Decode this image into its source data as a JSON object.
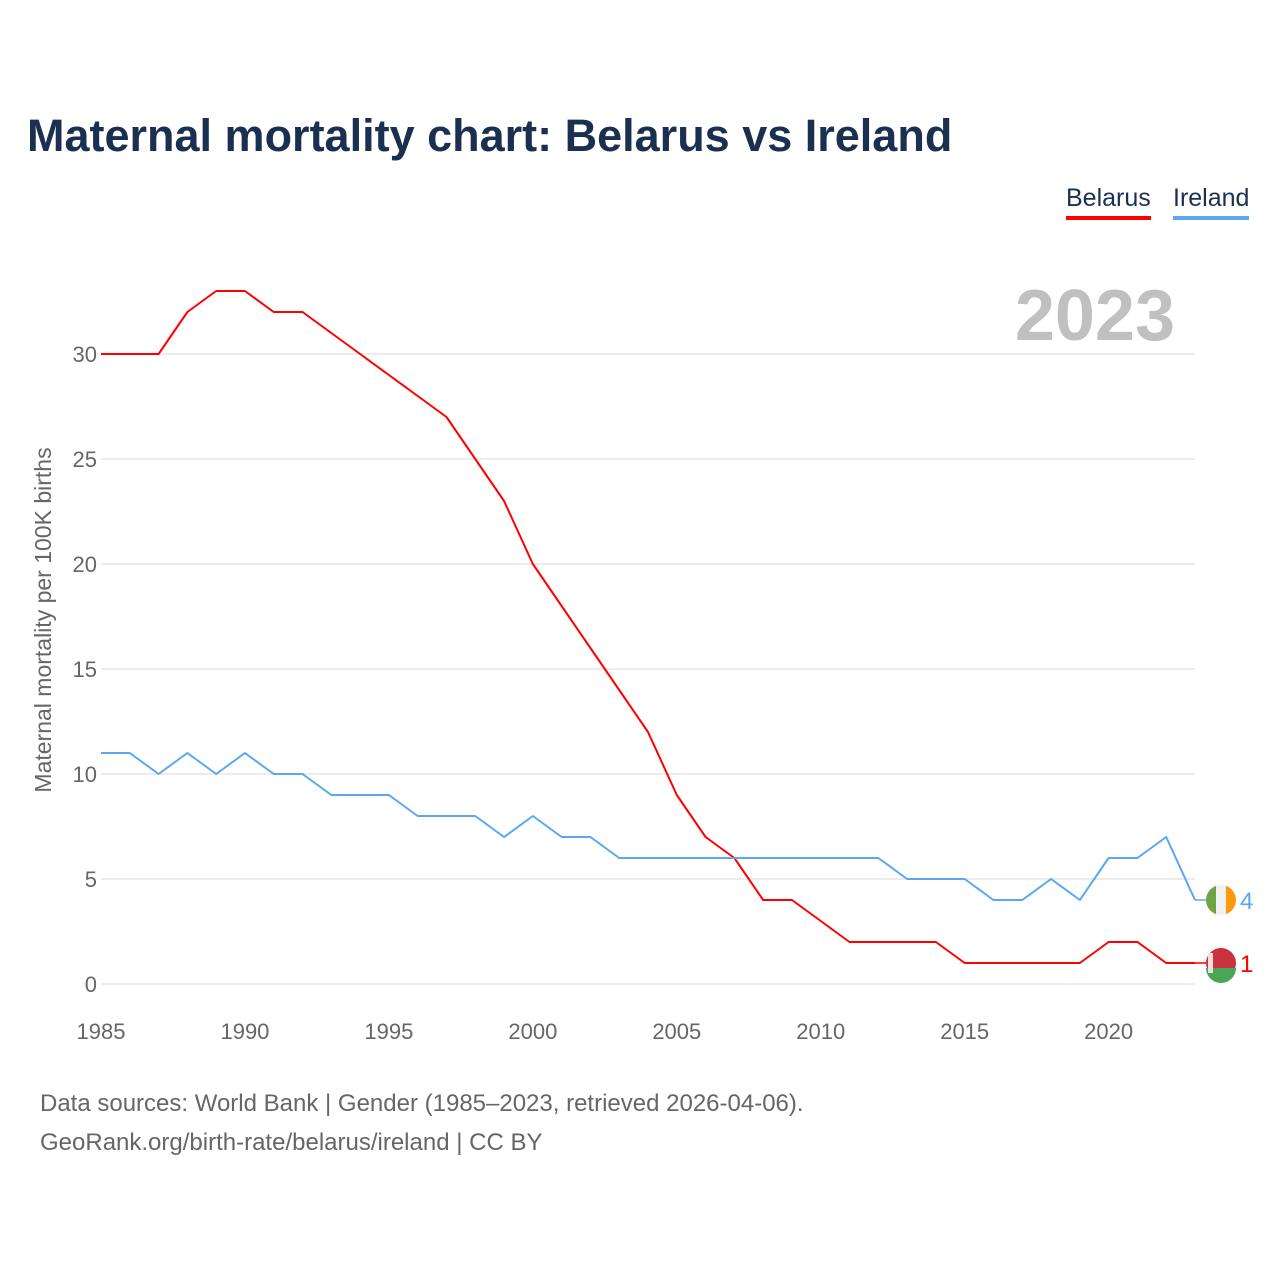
{
  "title": "Maternal mortality chart: Belarus vs Ireland",
  "year_label": "2023",
  "footer": {
    "line1": "Data sources: World Bank | Gender (1985–2023, retrieved 2026-04-06).",
    "line2": "GeoRank.org/birth-rate/belarus/ireland | CC BY"
  },
  "chart_data": {
    "type": "line",
    "title": "Maternal mortality chart: Belarus vs Ireland",
    "xlabel": "",
    "ylabel": "Maternal mortality per 100K births",
    "xlim": [
      1985,
      2023
    ],
    "ylim": [
      0,
      30
    ],
    "grid": true,
    "legend_position": "top-right",
    "x_ticks": [
      1985,
      1990,
      1995,
      2000,
      2005,
      2010,
      2015,
      2020
    ],
    "y_ticks": [
      0,
      5,
      10,
      15,
      20,
      25,
      30
    ],
    "x": [
      1985,
      1986,
      1987,
      1988,
      1989,
      1990,
      1991,
      1992,
      1993,
      1994,
      1995,
      1996,
      1997,
      1998,
      1999,
      2000,
      2001,
      2002,
      2003,
      2004,
      2005,
      2006,
      2007,
      2008,
      2009,
      2010,
      2011,
      2012,
      2013,
      2014,
      2015,
      2016,
      2017,
      2018,
      2019,
      2020,
      2021,
      2022,
      2023
    ],
    "series": [
      {
        "name": "Belarus",
        "color": "#ff0000",
        "end_label": "1",
        "values": [
          30,
          30,
          30,
          32,
          33,
          33,
          32,
          32,
          31,
          30,
          29,
          28,
          27,
          25,
          23,
          20,
          18,
          16,
          14,
          12,
          9,
          7,
          6,
          4,
          4,
          3,
          2,
          2,
          2,
          2,
          1,
          1,
          1,
          1,
          1,
          2,
          2,
          1,
          1
        ]
      },
      {
        "name": "Ireland",
        "color": "#5ba8f0",
        "end_label": "4",
        "values": [
          11,
          11,
          10,
          11,
          10,
          11,
          10,
          10,
          9,
          9,
          9,
          8,
          8,
          8,
          7,
          8,
          7,
          7,
          6,
          6,
          6,
          6,
          6,
          6,
          6,
          6,
          6,
          6,
          5,
          5,
          5,
          4,
          4,
          5,
          4,
          6,
          6,
          7,
          4
        ]
      }
    ]
  }
}
